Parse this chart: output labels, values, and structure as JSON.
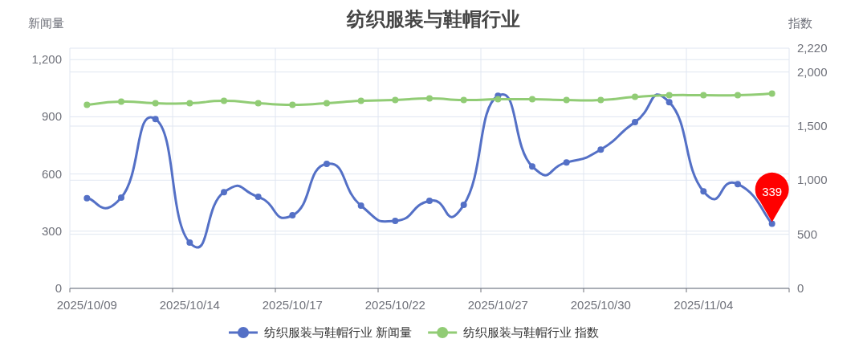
{
  "chart_data": {
    "type": "line",
    "title": "纺织服装与鞋帽行业",
    "ylabel": "新闻量",
    "y2label": "指数",
    "categories": [
      "2025/10/09",
      null,
      null,
      "2025/10/14",
      null,
      null,
      "2025/10/17",
      null,
      null,
      "2025/10/22",
      null,
      null,
      "2025/10/27",
      null,
      null,
      "2025/10/30",
      null,
      null,
      "2025/11/04",
      null,
      null
    ],
    "series": [
      {
        "name": "纺织服装与鞋帽行业 新闻量",
        "color": "#5470c6",
        "values": [
          473,
          476,
          888,
          240,
          505,
          480,
          383,
          653,
          434,
          354,
          459,
          438,
          1010,
          640,
          661,
          728,
          872,
          977,
          509,
          547,
          339
        ],
        "value_labels": [
          null,
          null,
          null,
          null,
          null,
          null,
          null,
          null,
          null,
          null,
          null,
          null,
          null,
          null,
          null,
          null,
          null,
          null,
          null,
          null,
          "339"
        ]
      },
      {
        "name": "纺织服装与鞋帽行业 指数",
        "color": "#91cc75",
        "axis": "y2",
        "values": [
          1696,
          1726,
          1711,
          1711,
          1733,
          1711,
          1696,
          1711,
          1733,
          1741,
          1756,
          1741,
          1748,
          1748,
          1741,
          1741,
          1770,
          1785,
          1785,
          1785,
          1800
        ]
      }
    ],
    "ylim": [
      0,
      1260
    ],
    "yticks": [
      0,
      300,
      600,
      {
        "value": 900,
        "label": "900"
      },
      {
        "value": 1200,
        "label": "1,200"
      }
    ],
    "y2lim": [
      0,
      2220
    ],
    "y2ticks": [
      0,
      500,
      {
        "value": 1000,
        "label": "1,000"
      },
      {
        "value": 1500,
        "label": "1,500"
      },
      {
        "value": 2000,
        "label": "2,000"
      },
      {
        "value": 2220,
        "label": "2,220"
      }
    ],
    "grid": true,
    "legend": "bottom",
    "marker": "circle",
    "line_style": "solid"
  }
}
